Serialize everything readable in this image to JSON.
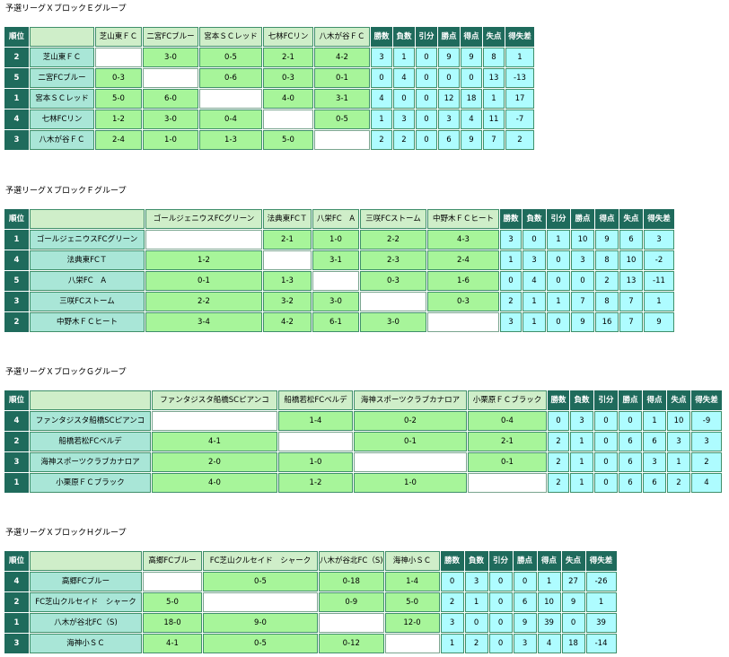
{
  "groups": [
    {
      "title": "予選リーグＸブロックＥグループ",
      "headers": {
        "rank": "順位",
        "teams": [
          "芝山東ＦＣ",
          "二宮FCブルー",
          "宮本ＳＣレッド",
          "七林FCリン",
          "八木が谷ＦＣ"
        ],
        "stats": [
          "勝数",
          "負数",
          "引分",
          "勝点",
          "得点",
          "失点",
          "得失差"
        ]
      },
      "rows": [
        {
          "rank": "2",
          "team": "芝山東ＦＣ",
          "results": [
            "",
            "3-0",
            "0-5",
            "2-1",
            "4-2"
          ],
          "stats": [
            "3",
            "1",
            "0",
            "9",
            "9",
            "8",
            "1"
          ]
        },
        {
          "rank": "5",
          "team": "二宮FCブルー",
          "results": [
            "0-3",
            "",
            "0-6",
            "0-3",
            "0-1"
          ],
          "stats": [
            "0",
            "4",
            "0",
            "0",
            "0",
            "13",
            "-13"
          ]
        },
        {
          "rank": "1",
          "team": "宮本ＳＣレッド",
          "results": [
            "5-0",
            "6-0",
            "",
            "4-0",
            "3-1"
          ],
          "stats": [
            "4",
            "0",
            "0",
            "12",
            "18",
            "1",
            "17"
          ]
        },
        {
          "rank": "4",
          "team": "七林FCリン",
          "results": [
            "1-2",
            "3-0",
            "0-4",
            "",
            "0-5"
          ],
          "stats": [
            "1",
            "3",
            "0",
            "3",
            "4",
            "11",
            "-7"
          ]
        },
        {
          "rank": "3",
          "team": "八木が谷ＦＣ",
          "results": [
            "2-4",
            "1-0",
            "1-3",
            "5-0",
            ""
          ],
          "stats": [
            "2",
            "2",
            "0",
            "6",
            "9",
            "7",
            "2"
          ]
        }
      ]
    },
    {
      "title": "予選リーグＸブロックＦグループ",
      "headers": {
        "rank": "順位",
        "teams": [
          "ゴールジェニウスFCグリーン",
          "法典東FCＴ",
          "八栄FC　A",
          "三咲FCストーム",
          "中野木ＦＣヒート"
        ],
        "stats": [
          "勝数",
          "負数",
          "引分",
          "勝点",
          "得点",
          "失点",
          "得失差"
        ]
      },
      "rows": [
        {
          "rank": "1",
          "team": "ゴールジェニウスFCグリーン",
          "results": [
            "",
            "2-1",
            "1-0",
            "2-2",
            "4-3"
          ],
          "stats": [
            "3",
            "0",
            "1",
            "10",
            "9",
            "6",
            "3"
          ]
        },
        {
          "rank": "4",
          "team": "法典東FCＴ",
          "results": [
            "1-2",
            "",
            "3-1",
            "2-3",
            "2-4"
          ],
          "stats": [
            "1",
            "3",
            "0",
            "3",
            "8",
            "10",
            "-2"
          ]
        },
        {
          "rank": "5",
          "team": "八栄FC　A",
          "results": [
            "0-1",
            "1-3",
            "",
            "0-3",
            "1-6"
          ],
          "stats": [
            "0",
            "4",
            "0",
            "0",
            "2",
            "13",
            "-11"
          ]
        },
        {
          "rank": "3",
          "team": "三咲FCストーム",
          "results": [
            "2-2",
            "3-2",
            "3-0",
            "",
            "0-3"
          ],
          "stats": [
            "2",
            "1",
            "1",
            "7",
            "8",
            "7",
            "1"
          ]
        },
        {
          "rank": "2",
          "team": "中野木ＦＣヒート",
          "results": [
            "3-4",
            "4-2",
            "6-1",
            "3-0",
            ""
          ],
          "stats": [
            "3",
            "1",
            "0",
            "9",
            "16",
            "7",
            "9"
          ]
        }
      ]
    },
    {
      "title": "予選リーグＸブロックＧグループ",
      "headers": {
        "rank": "順位",
        "teams": [
          "ファンタジスタ船橋SCピアンコ",
          "船橋若松FCベルデ",
          "海神スポーツクラブカナロア",
          "小栗原ＦＣブラック"
        ],
        "stats": [
          "勝数",
          "負数",
          "引分",
          "勝点",
          "得点",
          "失点",
          "得失差"
        ]
      },
      "rows": [
        {
          "rank": "4",
          "team": "ファンタジスタ船橋SCピアンコ",
          "results": [
            "",
            "1-4",
            "0-2",
            "0-4"
          ],
          "stats": [
            "0",
            "3",
            "0",
            "0",
            "1",
            "10",
            "-9"
          ]
        },
        {
          "rank": "2",
          "team": "船橋若松FCベルデ",
          "results": [
            "4-1",
            "",
            "0-1",
            "2-1"
          ],
          "stats": [
            "2",
            "1",
            "0",
            "6",
            "6",
            "3",
            "3"
          ]
        },
        {
          "rank": "3",
          "team": "海神スポーツクラブカナロア",
          "results": [
            "2-0",
            "1-0",
            "",
            "0-1"
          ],
          "stats": [
            "2",
            "1",
            "0",
            "6",
            "3",
            "1",
            "2"
          ]
        },
        {
          "rank": "1",
          "team": "小栗原ＦＣブラック",
          "results": [
            "4-0",
            "1-2",
            "1-0",
            ""
          ],
          "stats": [
            "2",
            "1",
            "0",
            "6",
            "6",
            "2",
            "4"
          ]
        }
      ]
    },
    {
      "title": "予選リーグＸブロックＨグループ",
      "headers": {
        "rank": "順位",
        "teams": [
          "高郷FCブルー",
          "FC芝山クルセイド　シャーク",
          "八木が谷北FC（S)",
          "海神小ＳＣ"
        ],
        "stats": [
          "勝数",
          "負数",
          "引分",
          "勝点",
          "得点",
          "失点",
          "得失差"
        ]
      },
      "rows": [
        {
          "rank": "4",
          "team": "高郷FCブルー",
          "results": [
            "",
            "0-5",
            "0-18",
            "1-4"
          ],
          "stats": [
            "0",
            "3",
            "0",
            "0",
            "1",
            "27",
            "-26"
          ]
        },
        {
          "rank": "2",
          "team": "FC芝山クルセイド　シャーク",
          "results": [
            "5-0",
            "",
            "0-9",
            "5-0"
          ],
          "stats": [
            "2",
            "1",
            "0",
            "6",
            "10",
            "9",
            "1"
          ]
        },
        {
          "rank": "1",
          "team": "八木が谷北FC（S)",
          "results": [
            "18-0",
            "9-0",
            "",
            "12-0"
          ],
          "stats": [
            "3",
            "0",
            "0",
            "9",
            "39",
            "0",
            "39"
          ]
        },
        {
          "rank": "3",
          "team": "海神小ＳＣ",
          "results": [
            "4-1",
            "0-5",
            "0-12",
            ""
          ],
          "stats": [
            "1",
            "2",
            "0",
            "3",
            "4",
            "18",
            "-14"
          ]
        }
      ]
    }
  ]
}
